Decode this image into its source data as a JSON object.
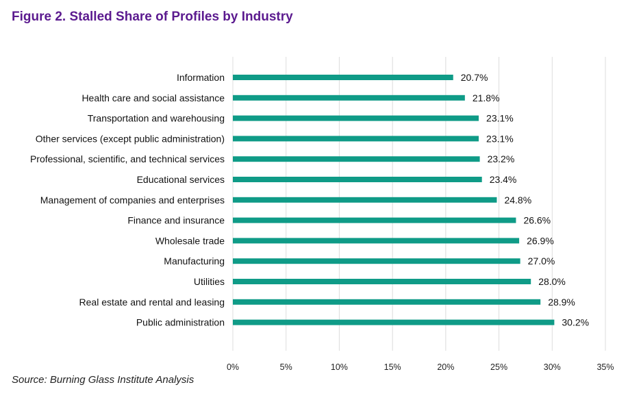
{
  "chart_data": {
    "type": "bar",
    "orientation": "horizontal",
    "title": "Figure 2. Stalled Share of Profiles by Industry",
    "categories": [
      "Information",
      "Health care and social assistance",
      "Transportation and warehousing",
      "Other services (except public administration)",
      "Professional, scientific, and technical services",
      "Educational services",
      "Management of companies and enterprises",
      "Finance and insurance",
      "Wholesale trade",
      "Manufacturing",
      "Utilities",
      "Real estate and rental and leasing",
      "Public administration"
    ],
    "values": [
      20.7,
      21.8,
      23.1,
      23.1,
      23.2,
      23.4,
      24.8,
      26.6,
      26.9,
      27.0,
      28.0,
      28.9,
      30.2
    ],
    "data_labels": [
      "20.7%",
      "21.8%",
      "23.1%",
      "23.1%",
      "23.2%",
      "23.4%",
      "24.8%",
      "26.6%",
      "26.9%",
      "27.0%",
      "28.0%",
      "28.9%",
      "30.2%"
    ],
    "xlim": [
      0,
      35
    ],
    "xticks": [
      0,
      5,
      10,
      15,
      20,
      25,
      30,
      35
    ],
    "xtick_labels": [
      "0%",
      "5%",
      "10%",
      "15%",
      "20%",
      "25%",
      "30%",
      "35%"
    ],
    "grid": "vertical",
    "bar_color": "#0f9b87",
    "title_color": "#5b1a8f",
    "legend": "none"
  },
  "source": "Source: Burning Glass Institute Analysis"
}
